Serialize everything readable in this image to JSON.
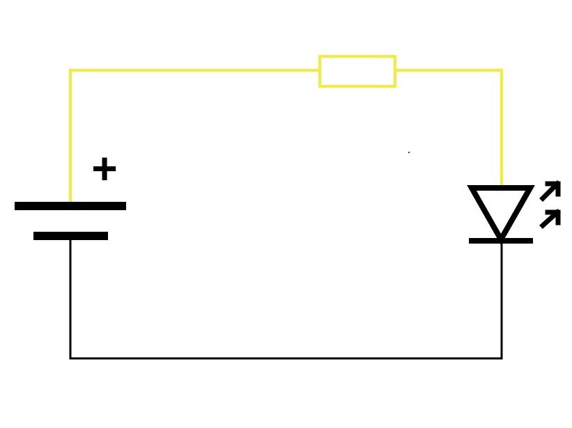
{
  "diagram": {
    "type": "circuit-schematic",
    "components": [
      {
        "kind": "battery",
        "terminal_mark": "+"
      },
      {
        "kind": "resistor"
      },
      {
        "kind": "led",
        "emission_arrows": 2
      }
    ],
    "colors": {
      "background": "#ffffff",
      "positive_wire": "#f5eb3a",
      "negative_wire": "#000000",
      "symbols": "#000000"
    }
  }
}
